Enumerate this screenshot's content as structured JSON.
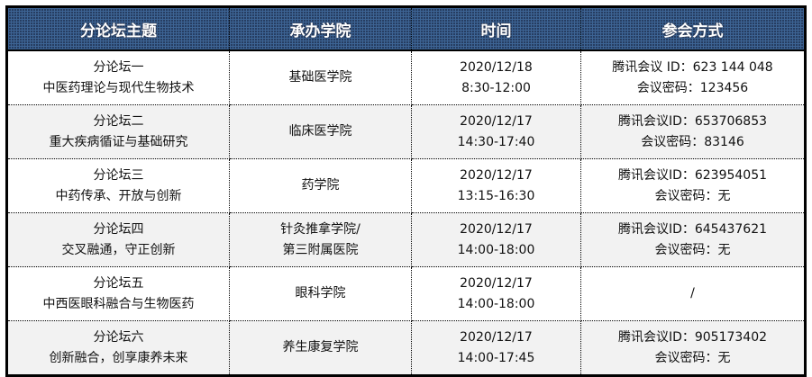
{
  "headers": [
    "分论坛主题",
    "承办学院",
    "时间",
    "参会方式"
  ],
  "rows": [
    {
      "theme": [
        "分论坛一",
        "中医药理论与现代生物技术"
      ],
      "college": [
        "基础医学院"
      ],
      "time": [
        "2020/12/18",
        "8:30-12:00"
      ],
      "join": [
        "腾讯会议 ID：623 144 048",
        "会议密码：123456"
      ]
    },
    {
      "theme": [
        "分论坛二",
        "重大疾病循证与基础研究"
      ],
      "college": [
        "临床医学院"
      ],
      "time": [
        "2020/12/17",
        "14:30-17:40"
      ],
      "join": [
        "腾讯会议ID：653706853",
        "会议密码：83146"
      ]
    },
    {
      "theme": [
        "分论坛三",
        "中药传承、开放与创新"
      ],
      "college": [
        "药学院"
      ],
      "time": [
        "2020/12/17",
        "13:15-16:30"
      ],
      "join": [
        "腾讯会议ID：623954051",
        "会议密码：无"
      ]
    },
    {
      "theme": [
        "分论坛四",
        "交叉融通，守正创新"
      ],
      "college": [
        "针灸推拿学院/",
        "第三附属医院"
      ],
      "time": [
        "2020/12/17",
        "14:00-18:00"
      ],
      "join": [
        "腾讯会议ID：645437621",
        "会议密码：无"
      ]
    },
    {
      "theme": [
        "分论坛五",
        "中西医眼科融合与生物医药"
      ],
      "college": [
        "眼科学院"
      ],
      "time": [
        "2020/12/17",
        "14:00-18:00"
      ],
      "join": [
        "/"
      ]
    },
    {
      "theme": [
        "分论坛六",
        "创新融合，创享康养未来"
      ],
      "college": [
        "养生康复学院"
      ],
      "time": [
        "2020/12/17",
        "14:00-17:45"
      ],
      "join": [
        "腾讯会议ID：905173402",
        "会议密码：无"
      ]
    }
  ]
}
